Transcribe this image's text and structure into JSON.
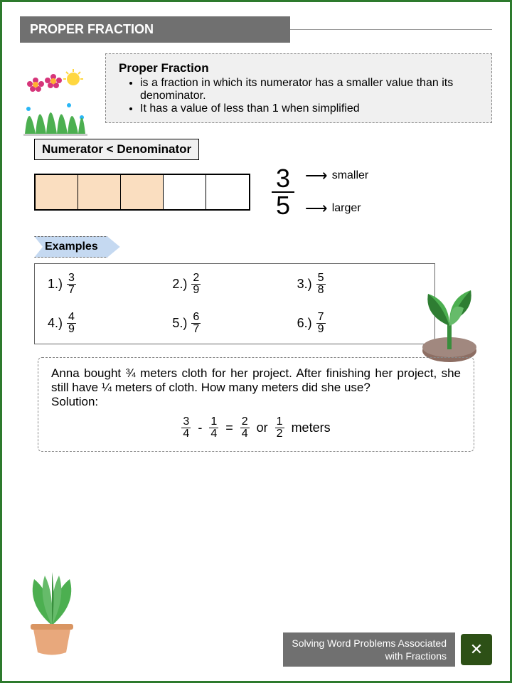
{
  "title": "PROPER FRACTION",
  "definition": {
    "heading": "Proper Fraction",
    "bullets": [
      "is a fraction in which its numerator has a smaller value than its denominator.",
      "It has a value of less than 1 when simplified"
    ]
  },
  "rule": "Numerator < Denominator",
  "visual": {
    "total_cells": 5,
    "filled_cells": 3,
    "filled_color": "#fadec0",
    "numerator": "3",
    "denominator": "5",
    "label_top": "smaller",
    "label_bottom": "larger"
  },
  "examples_label": "Examples",
  "examples": [
    {
      "num": "1.)",
      "n": "3",
      "d": "7"
    },
    {
      "num": "2.)",
      "n": "2",
      "d": "9"
    },
    {
      "num": "3.)",
      "n": "5",
      "d": "8"
    },
    {
      "num": "4.)",
      "n": "4",
      "d": "9"
    },
    {
      "num": "5.)",
      "n": "6",
      "d": "7"
    },
    {
      "num": "6.)",
      "n": "7",
      "d": "9"
    }
  ],
  "problem": {
    "text": "Anna bought ¾ meters cloth for her project. After finishing her project, she still have ¼ meters of cloth. How many meters did she use?",
    "solution_label": "Solution:",
    "eq": {
      "a_n": "3",
      "a_d": "4",
      "op": "-",
      "b_n": "1",
      "b_d": "4",
      "eq": "=",
      "c_n": "2",
      "c_d": "4",
      "or": "or",
      "r_n": "1",
      "r_d": "2",
      "unit": "meters"
    }
  },
  "footer": {
    "line1": "Solving Word Problems Associated",
    "line2": "with Fractions"
  },
  "colors": {
    "border": "#2d7a2d",
    "header": "#707070",
    "tag": "#c5d9f1"
  }
}
